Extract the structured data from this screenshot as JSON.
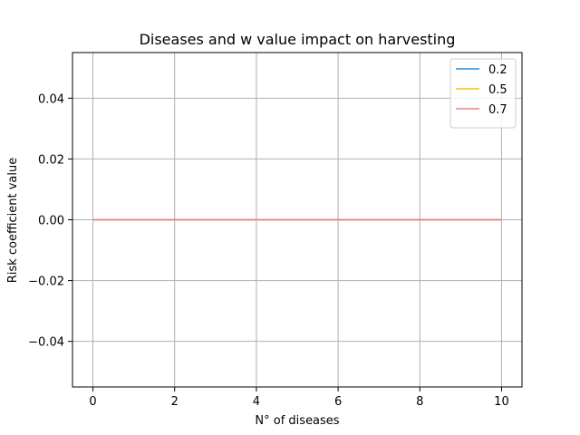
{
  "chart_data": {
    "type": "line",
    "title": "Diseases and w value impact on harvesting",
    "xlabel": "N° of diseases",
    "ylabel": "Risk coefficient value",
    "xlim": [
      -0.5,
      10.5
    ],
    "ylim": [
      -0.055,
      0.055
    ],
    "x_ticks": [
      0,
      2,
      4,
      6,
      8,
      10
    ],
    "x_tick_labels": [
      "0",
      "2",
      "4",
      "6",
      "8",
      "10"
    ],
    "y_ticks": [
      -0.04,
      -0.02,
      0.0,
      0.02,
      0.04
    ],
    "y_tick_labels": [
      "−0.04",
      "−0.02",
      "0.00",
      "0.02",
      "0.04"
    ],
    "grid": true,
    "legend_position": "top-right",
    "x": [
      0,
      10
    ],
    "series": [
      {
        "name": "0.2",
        "color": "#1f8fe6",
        "values": [
          0,
          0
        ]
      },
      {
        "name": "0.5",
        "color": "#f5c400",
        "values": [
          0,
          0
        ]
      },
      {
        "name": "0.7",
        "color": "#f08080",
        "values": [
          0,
          0
        ]
      }
    ]
  }
}
